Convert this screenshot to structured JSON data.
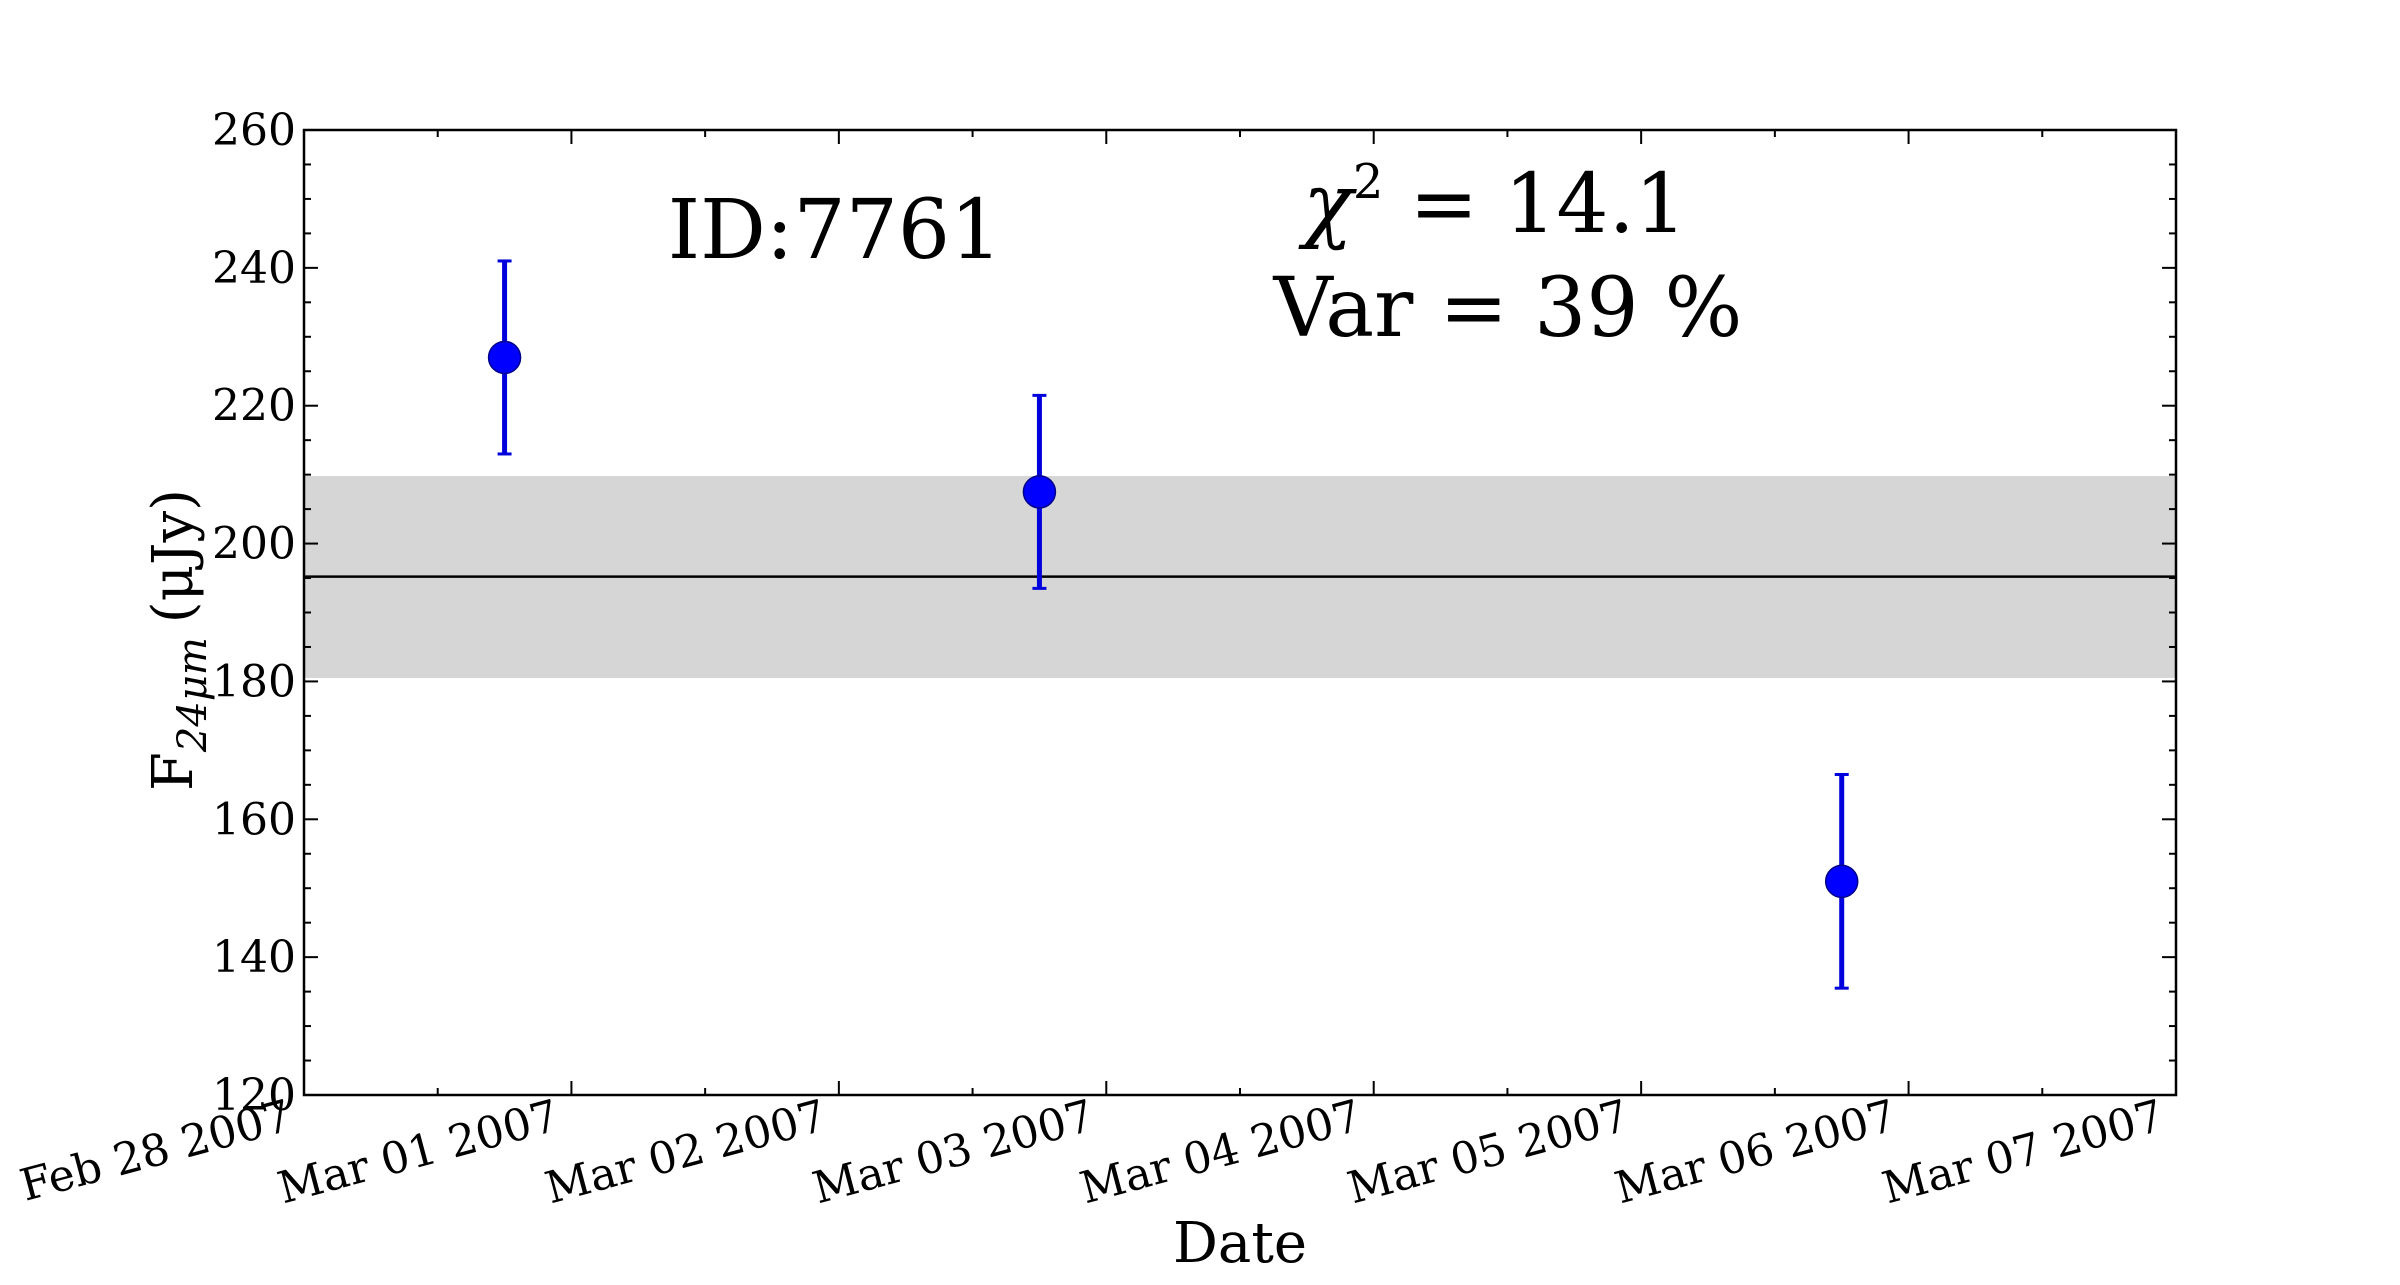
{
  "chart_data": {
    "type": "scatter",
    "xlabel": "Date",
    "ylabel": "F",
    "ylabel_subscript": "24μm",
    "ylabel_unit": "(μJy)",
    "ylim": [
      120,
      260
    ],
    "yticks": [
      120,
      140,
      160,
      180,
      200,
      220,
      240,
      260
    ],
    "xlim": [
      "2007-02-28",
      "2007-03-07"
    ],
    "xticks": [
      "Feb 28 2007",
      "Mar 01 2007",
      "Mar 02 2007",
      "Mar 03 2007",
      "Mar 04 2007",
      "Mar 05 2007",
      "Mar 06 2007",
      "Mar 07 2007"
    ],
    "points": [
      {
        "x": "2007-02-28T18:00",
        "y": 227.0,
        "yerr": 14.0
      },
      {
        "x": "2007-03-02T18:00",
        "y": 207.5,
        "yerr": 14.0
      },
      {
        "x": "2007-03-05T18:00",
        "y": 151.0,
        "yerr": 15.5
      }
    ],
    "mean_line": 195.2,
    "band": [
      180.5,
      209.8
    ],
    "annotations": {
      "id": "ID:7761",
      "chi2_symbol": "χ",
      "chi2_power": "2",
      "chi2_rest": " = 14.1",
      "var": "Var = 39 %"
    },
    "colors": {
      "points": "#0000ff",
      "errorbars": "#0000dd",
      "band": "#d6d6d6",
      "line": "#000000"
    },
    "grid": false,
    "legend": "none"
  }
}
